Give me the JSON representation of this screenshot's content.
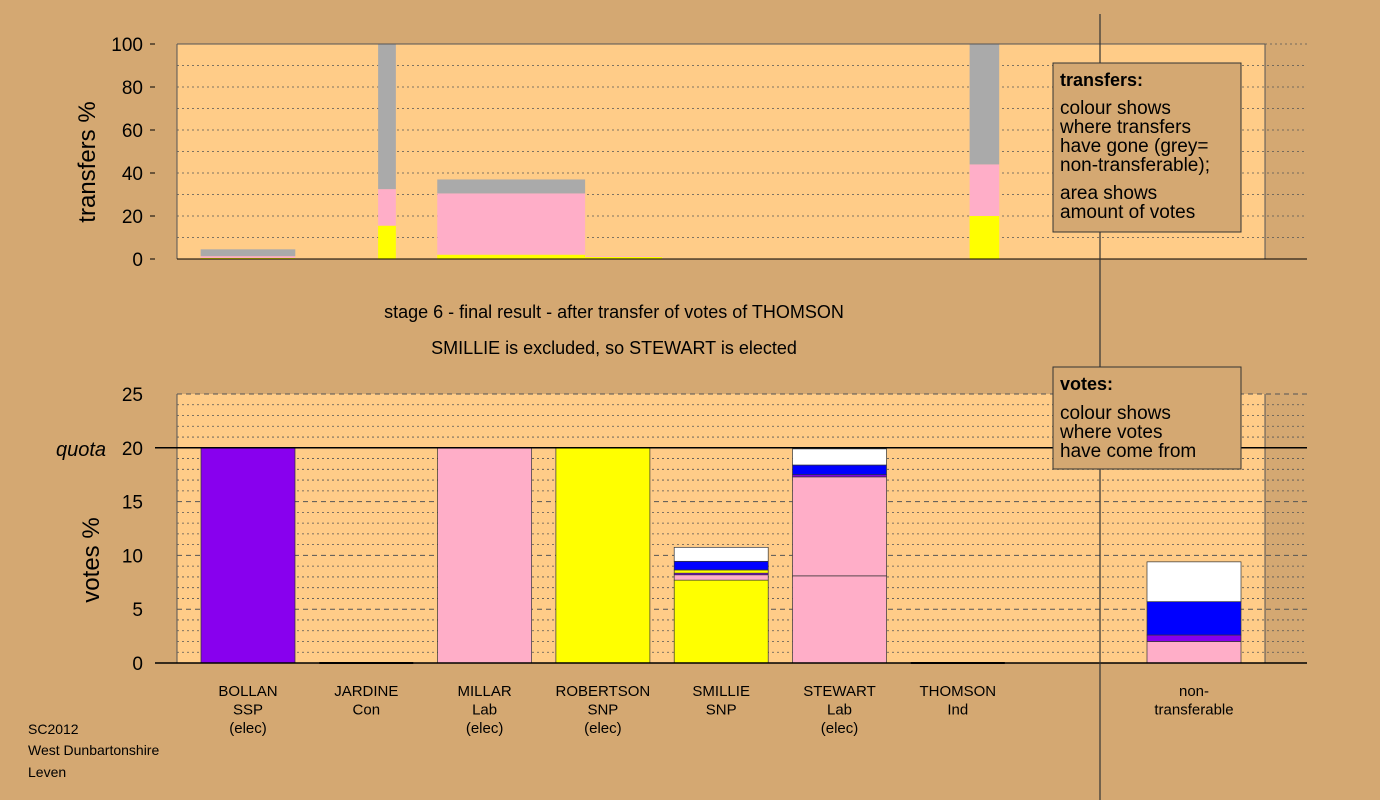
{
  "colors": {
    "background": "#d4a872",
    "plot_bg": "#ffcc88",
    "SSP": "#8800ee",
    "Lab": "#ffaec8",
    "SNP": "#ffff00",
    "Con": "#0000ff",
    "Ind": "#ffffff",
    "nontransferable": "#aaaaaa"
  },
  "stage_text": {
    "line1": "stage 6 - final result - after transfer of votes of THOMSON",
    "line2": "SMILLIE is excluded, so STEWART is elected"
  },
  "legend_transfers": {
    "title": "transfers:",
    "lines": [
      "colour shows",
      "where transfers",
      "have gone (grey=",
      "non-transferable);",
      "area shows",
      "amount of votes"
    ]
  },
  "legend_votes": {
    "title": "votes:",
    "lines": [
      "colour shows",
      "where votes",
      "have come from"
    ]
  },
  "footer": [
    "SC2012",
    "West Dunbartonshire",
    "Leven"
  ],
  "candidates": [
    {
      "name": "BOLLAN",
      "party": "SSP",
      "status": "(elec)"
    },
    {
      "name": "JARDINE",
      "party": "Con",
      "status": ""
    },
    {
      "name": "MILLAR",
      "party": "Lab",
      "status": "(elec)"
    },
    {
      "name": "ROBERTSON",
      "party": "SNP",
      "status": "(elec)"
    },
    {
      "name": "SMILLIE",
      "party": "SNP",
      "status": ""
    },
    {
      "name": "STEWART",
      "party": "Lab",
      "status": "(elec)"
    },
    {
      "name": "THOMSON",
      "party": "Ind",
      "status": ""
    },
    {
      "name": "non-",
      "party": "transferable",
      "status": ""
    }
  ],
  "chart_data": [
    {
      "type": "bar",
      "ylabel": "transfers %",
      "ylim": [
        0,
        100
      ],
      "yticks": [
        0,
        20,
        40,
        60,
        80,
        100
      ],
      "grid": "dotted",
      "bars": [
        {
          "source": "BOLLAN",
          "x_range": [
            0.2,
            1.0
          ],
          "segments": [
            {
              "party": "SNP",
              "value": 0.5
            },
            {
              "party": "Lab",
              "value": 0.8
            },
            {
              "party": "nontransferable",
              "value": 3.2
            }
          ]
        },
        {
          "source": "JARDINE",
          "x_range": [
            1.7,
            1.85
          ],
          "segments": [
            {
              "party": "SNP",
              "value": 15.5
            },
            {
              "party": "Lab",
              "value": 17
            },
            {
              "party": "nontransferable",
              "value": 67.5
            }
          ]
        },
        {
          "source": "MILLAR",
          "x_range": [
            2.2,
            3.45
          ],
          "segments": [
            {
              "party": "SNP",
              "value": 2
            },
            {
              "party": "Lab",
              "value": 28.5
            },
            {
              "party": "nontransferable",
              "value": 6.5
            }
          ]
        },
        {
          "source": "ROBERTSON",
          "x_range": [
            3.45,
            4.1
          ],
          "segments": [
            {
              "party": "SNP",
              "value": 1
            },
            {
              "party": "Lab",
              "value": 0.3
            }
          ]
        },
        {
          "source": "THOMSON",
          "x_range": [
            6.7,
            6.95
          ],
          "segments": [
            {
              "party": "SNP",
              "value": 20
            },
            {
              "party": "Lab",
              "value": 24
            },
            {
              "party": "nontransferable",
              "value": 56
            }
          ]
        }
      ]
    },
    {
      "type": "bar",
      "ylabel": "votes %",
      "ylim": [
        0,
        25
      ],
      "yticks": [
        0,
        5,
        10,
        15,
        20,
        25
      ],
      "quota": 20,
      "quota_label": "quota",
      "grid": "dashed",
      "categories": [
        "BOLLAN",
        "JARDINE",
        "MILLAR",
        "ROBERTSON",
        "SMILLIE",
        "STEWART",
        "THOMSON",
        "non-transferable"
      ],
      "stacks": [
        [
          {
            "party": "SSP",
            "value": 20
          }
        ],
        [],
        [
          {
            "party": "Lab",
            "value": 20
          }
        ],
        [
          {
            "party": "SNP",
            "value": 20
          }
        ],
        [
          {
            "party": "SNP",
            "value": 7.7
          },
          {
            "party": "Lab",
            "value": 0.5
          },
          {
            "party": "SSP",
            "value": 0.15
          },
          {
            "party": "SNP",
            "value": 0.3
          },
          {
            "party": "Con",
            "value": 0.8
          },
          {
            "party": "Ind",
            "value": 1.3
          }
        ],
        [
          {
            "party": "Lab",
            "value": 8.1
          },
          {
            "party": "Lab",
            "value": 9.2
          },
          {
            "party": "SSP",
            "value": 0.2
          },
          {
            "party": "Con",
            "value": 0.9
          },
          {
            "party": "Ind",
            "value": 1.5
          }
        ],
        [],
        [
          {
            "party": "Lab",
            "value": 2.0
          },
          {
            "party": "SSP",
            "value": 0.6
          },
          {
            "party": "Con",
            "value": 3.1
          },
          {
            "party": "Ind",
            "value": 3.7
          }
        ]
      ]
    }
  ]
}
